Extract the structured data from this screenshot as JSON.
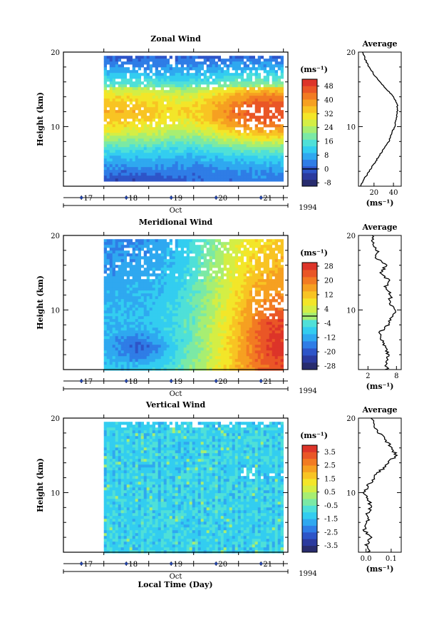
{
  "figure": {
    "xlabel": "Local Time (Day)",
    "month": "Oct",
    "year": "1994"
  },
  "chart_data": [
    {
      "type": "heatmap",
      "title": "Zonal Wind",
      "ylabel": "Height (km)",
      "ylim": [
        2,
        20
      ],
      "yticks": [
        "10",
        "20"
      ],
      "xlim": [
        16.1,
        21.1
      ],
      "xticks": [
        "17",
        "18",
        "19",
        "20",
        "21"
      ],
      "data_xrange": [
        17.0,
        21.0
      ],
      "data_yrange": [
        3,
        19.5
      ],
      "colorbar": {
        "unit": "(ms⁻¹)",
        "min": -10,
        "max": 52,
        "step": 4,
        "labels": [
          "48",
          "40",
          "32",
          "24",
          "16",
          "8",
          "0",
          "-8"
        ],
        "zero_line": 0
      },
      "field": "zonal",
      "average": {
        "title": "Average",
        "xlim": [
          4,
          48
        ],
        "xticks": [
          "20",
          "40"
        ],
        "xlabel": "(ms⁻¹)",
        "heights": [
          2,
          3,
          4,
          5,
          6,
          7,
          8,
          9,
          10,
          11,
          12,
          13,
          14,
          15,
          16,
          17,
          18,
          19,
          20
        ],
        "values": [
          6,
          10,
          15,
          20,
          25,
          30,
          35,
          38,
          41,
          43,
          44,
          44,
          40,
          33,
          26,
          20,
          15,
          11,
          8
        ]
      }
    },
    {
      "type": "heatmap",
      "title": "Meridional Wind",
      "ylabel": "Height (km)",
      "ylim": [
        2,
        20
      ],
      "yticks": [
        "10",
        "20"
      ],
      "xlim": [
        16.1,
        21.1
      ],
      "xticks": [
        "17",
        "18",
        "19",
        "20",
        "21"
      ],
      "data_xrange": [
        17.0,
        21.0
      ],
      "data_yrange": [
        2,
        19.5
      ],
      "colorbar": {
        "unit": "(ms⁻¹)",
        "min": -30,
        "max": 30,
        "step": 4,
        "labels": [
          "28",
          "20",
          "12",
          "4",
          "-4",
          "-12",
          "-20",
          "-28"
        ],
        "zero_line": 0
      },
      "field": "meridional",
      "average": {
        "title": "Average",
        "xlim": [
          0,
          9
        ],
        "xticks": [
          "2",
          "8"
        ],
        "xlabel": "(ms⁻¹)",
        "heights": [
          2,
          3,
          4,
          5,
          6,
          7,
          8,
          9,
          10,
          11,
          12,
          13,
          14,
          15,
          16,
          17,
          18,
          19,
          20
        ],
        "values": [
          6.0,
          5.8,
          6.3,
          5.4,
          5.0,
          4.6,
          6.1,
          6.8,
          7.8,
          6.4,
          6.9,
          5.7,
          6.2,
          4.9,
          5.6,
          3.8,
          3.9,
          3.2,
          2.9
        ]
      }
    },
    {
      "type": "heatmap",
      "title": "Vertical Wind",
      "ylabel": "Height (km)",
      "ylim": [
        2,
        20
      ],
      "yticks": [
        "10",
        "20"
      ],
      "xlim": [
        16.1,
        21.1
      ],
      "xticks": [
        "17",
        "18",
        "19",
        "20",
        "21"
      ],
      "data_xrange": [
        17.0,
        21.0
      ],
      "data_yrange": [
        2,
        19.5
      ],
      "colorbar": {
        "unit": "(ms⁻¹)",
        "min": -4,
        "max": 4,
        "step": 0.5,
        "labels": [
          "3.5",
          "2.5",
          "1.5",
          "0.5",
          "-0.5",
          "-1.5",
          "-2.5",
          "-3.5"
        ],
        "zero_line": null
      },
      "field": "vertical",
      "average": {
        "title": "Average",
        "xlim": [
          -0.03,
          0.14
        ],
        "xticks": [
          "0.0",
          "0.1"
        ],
        "xlabel": "(ms⁻¹)",
        "heights": [
          2,
          3,
          4,
          5,
          6,
          7,
          8,
          9,
          10,
          11,
          12,
          13,
          14,
          15,
          16,
          17,
          18,
          19,
          20
        ],
        "values": [
          0.01,
          0.0,
          0.02,
          -0.01,
          0.01,
          0.0,
          0.02,
          0.01,
          -0.01,
          0.01,
          0.03,
          0.06,
          0.09,
          0.12,
          0.1,
          0.08,
          0.05,
          0.03,
          0.02
        ]
      }
    }
  ]
}
